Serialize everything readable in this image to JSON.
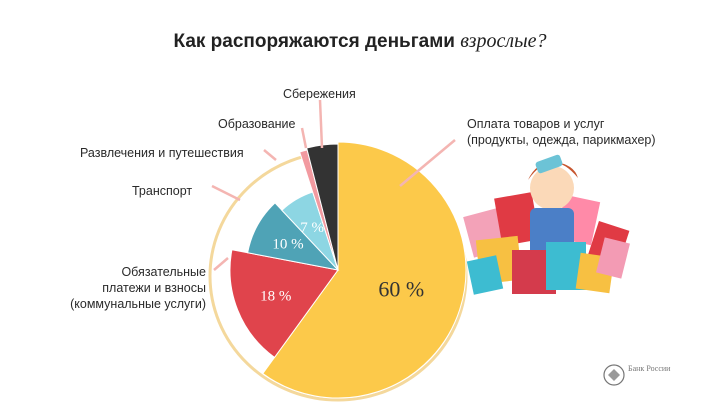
{
  "title": {
    "bold_part": "Как распоряжаются деньгами",
    "italic_part": "взрослые?"
  },
  "footer": {
    "brand": "Банк России"
  },
  "colors": {
    "goods": "#fcc94a",
    "mandatory": "#e0444c",
    "transport": "#4fa3b6",
    "entertainment": "#8dd6e3",
    "education": "#f29aa0",
    "savings": "#333333"
  },
  "chart_data": {
    "type": "pie",
    "slices": [
      {
        "label": "Оплата товаров и услуг\n(продукты, одежда, парикмахер)",
        "value": 60,
        "value_label": "60 %"
      },
      {
        "label": "Обязательные\nплатежи и взносы\n(коммунальные услуги)",
        "value": 18,
        "value_label": "18 %"
      },
      {
        "label": "Транспорт",
        "value": 10,
        "value_label": "10 %"
      },
      {
        "label": "Развлечения и путешествия",
        "value": 7,
        "value_label": "7 %"
      },
      {
        "label": "Образование",
        "value": 1
      },
      {
        "label": "Сбережения",
        "value": 4
      }
    ]
  }
}
